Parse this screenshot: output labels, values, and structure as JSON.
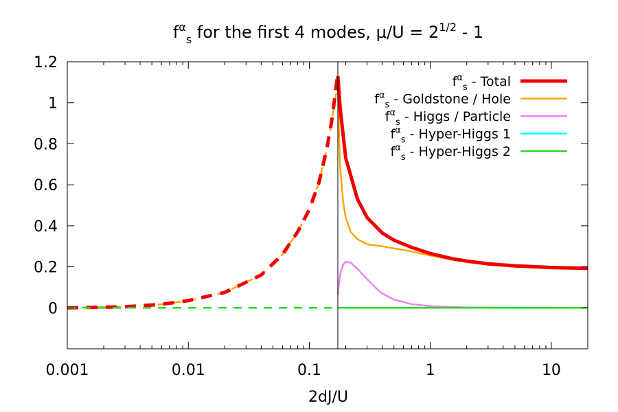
{
  "chart_data": {
    "type": "line",
    "title": {
      "prefix": "f",
      "prefix_sup": "α",
      "prefix_sub": "s",
      "middle": " for the first 4 modes, μ/U = 2",
      "exp": "1/2",
      "suffix": " - 1"
    },
    "xlabel": "2dJ/U",
    "ylabel": "",
    "x_scale": "log",
    "xlim": [
      0.001,
      20
    ],
    "ylim": [
      -0.2,
      1.2
    ],
    "x_ticks": [
      {
        "value": 0.001,
        "label": "0.001"
      },
      {
        "value": 0.01,
        "label": "0.01"
      },
      {
        "value": 0.1,
        "label": "0.1"
      },
      {
        "value": 1,
        "label": "1"
      },
      {
        "value": 10,
        "label": "10"
      }
    ],
    "y_ticks": [
      {
        "value": 0,
        "label": "0"
      },
      {
        "value": 0.2,
        "label": "0.2"
      },
      {
        "value": 0.4,
        "label": "0.4"
      },
      {
        "value": 0.6,
        "label": "0.6"
      },
      {
        "value": 0.8,
        "label": "0.8"
      },
      {
        "value": 1.0,
        "label": "1"
      },
      {
        "value": 1.2,
        "label": "1.2"
      }
    ],
    "vline": 0.172,
    "legend_position": "top-right",
    "series": [
      {
        "name": "Total",
        "legend_prefix": "f",
        "legend_sup": "α",
        "legend_sub": "s",
        "legend_label": " - Total",
        "color": "#ee0000",
        "width": 5,
        "dashed_points": [
          [
            0.001,
            0.0
          ],
          [
            0.003,
            0.005
          ],
          [
            0.006,
            0.017
          ],
          [
            0.01,
            0.035
          ],
          [
            0.02,
            0.075
          ],
          [
            0.04,
            0.16
          ],
          [
            0.06,
            0.26
          ],
          [
            0.08,
            0.37
          ],
          [
            0.1,
            0.48
          ],
          [
            0.12,
            0.61
          ],
          [
            0.14,
            0.78
          ],
          [
            0.155,
            0.93
          ],
          [
            0.165,
            1.06
          ],
          [
            0.17,
            1.12
          ]
        ],
        "solid_points": [
          [
            0.172,
            1.13
          ],
          [
            0.18,
            0.97
          ],
          [
            0.2,
            0.73
          ],
          [
            0.25,
            0.53
          ],
          [
            0.3,
            0.44
          ],
          [
            0.4,
            0.365
          ],
          [
            0.5,
            0.33
          ],
          [
            0.7,
            0.295
          ],
          [
            1,
            0.265
          ],
          [
            1.5,
            0.24
          ],
          [
            2,
            0.228
          ],
          [
            3,
            0.215
          ],
          [
            5,
            0.205
          ],
          [
            10,
            0.197
          ],
          [
            20,
            0.193
          ]
        ]
      },
      {
        "name": "Goldstone / Hole",
        "legend_prefix": "f",
        "legend_sup": "α",
        "legend_sub": "s",
        "legend_label": " - Goldstone / Hole",
        "color": "#ffa500",
        "width": 2.5,
        "dashed_points": [
          [
            0.001,
            0.0
          ],
          [
            0.003,
            0.005
          ],
          [
            0.006,
            0.017
          ],
          [
            0.01,
            0.035
          ],
          [
            0.02,
            0.075
          ],
          [
            0.04,
            0.16
          ],
          [
            0.06,
            0.26
          ],
          [
            0.08,
            0.37
          ],
          [
            0.1,
            0.48
          ],
          [
            0.12,
            0.61
          ],
          [
            0.14,
            0.78
          ],
          [
            0.155,
            0.93
          ],
          [
            0.165,
            1.03
          ],
          [
            0.17,
            1.07
          ]
        ],
        "solid_points": [
          [
            0.172,
            1.08
          ],
          [
            0.176,
            0.85
          ],
          [
            0.18,
            0.68
          ],
          [
            0.19,
            0.52
          ],
          [
            0.2,
            0.44
          ],
          [
            0.22,
            0.37
          ],
          [
            0.25,
            0.335
          ],
          [
            0.3,
            0.31
          ],
          [
            0.4,
            0.3
          ],
          [
            0.5,
            0.29
          ],
          [
            0.7,
            0.275
          ],
          [
            1,
            0.255
          ],
          [
            1.5,
            0.235
          ],
          [
            2,
            0.223
          ],
          [
            3,
            0.21
          ],
          [
            5,
            0.2
          ],
          [
            10,
            0.192
          ],
          [
            20,
            0.188
          ]
        ]
      },
      {
        "name": "Higgs / Particle",
        "legend_prefix": "f",
        "legend_sup": "α",
        "legend_sub": "s",
        "legend_label": " - Higgs / Particle",
        "color": "#ee82ee",
        "width": 2.5,
        "dashed_points": [],
        "solid_points": [
          [
            0.172,
            0.065
          ],
          [
            0.175,
            0.11
          ],
          [
            0.18,
            0.165
          ],
          [
            0.19,
            0.21
          ],
          [
            0.2,
            0.225
          ],
          [
            0.22,
            0.22
          ],
          [
            0.25,
            0.19
          ],
          [
            0.3,
            0.14
          ],
          [
            0.35,
            0.1
          ],
          [
            0.4,
            0.07
          ],
          [
            0.5,
            0.04
          ],
          [
            0.7,
            0.018
          ],
          [
            1,
            0.008
          ],
          [
            2,
            0.002
          ],
          [
            5,
            0.0005
          ],
          [
            20,
            0.0
          ]
        ]
      },
      {
        "name": "Hyper-Higgs 1",
        "legend_prefix": "f",
        "legend_sup": "α",
        "legend_sub": "s",
        "legend_label": " - Hyper-Higgs 1",
        "color": "#00ffff",
        "width": 2.5,
        "dashed_points": [
          [
            0.001,
            0.0
          ],
          [
            0.172,
            0.0
          ]
        ],
        "solid_points": [
          [
            0.172,
            0.0
          ],
          [
            20,
            0.0
          ]
        ]
      },
      {
        "name": "Hyper-Higgs 2",
        "legend_prefix": "f",
        "legend_sup": "α",
        "legend_sub": "s",
        "legend_label": " - Hyper-Higgs 2",
        "color": "#22dd22",
        "width": 2.5,
        "dashed_points": [
          [
            0.001,
            0.0
          ],
          [
            0.172,
            0.0
          ]
        ],
        "solid_points": [
          [
            0.172,
            0.0
          ],
          [
            20,
            0.0
          ]
        ]
      }
    ]
  }
}
